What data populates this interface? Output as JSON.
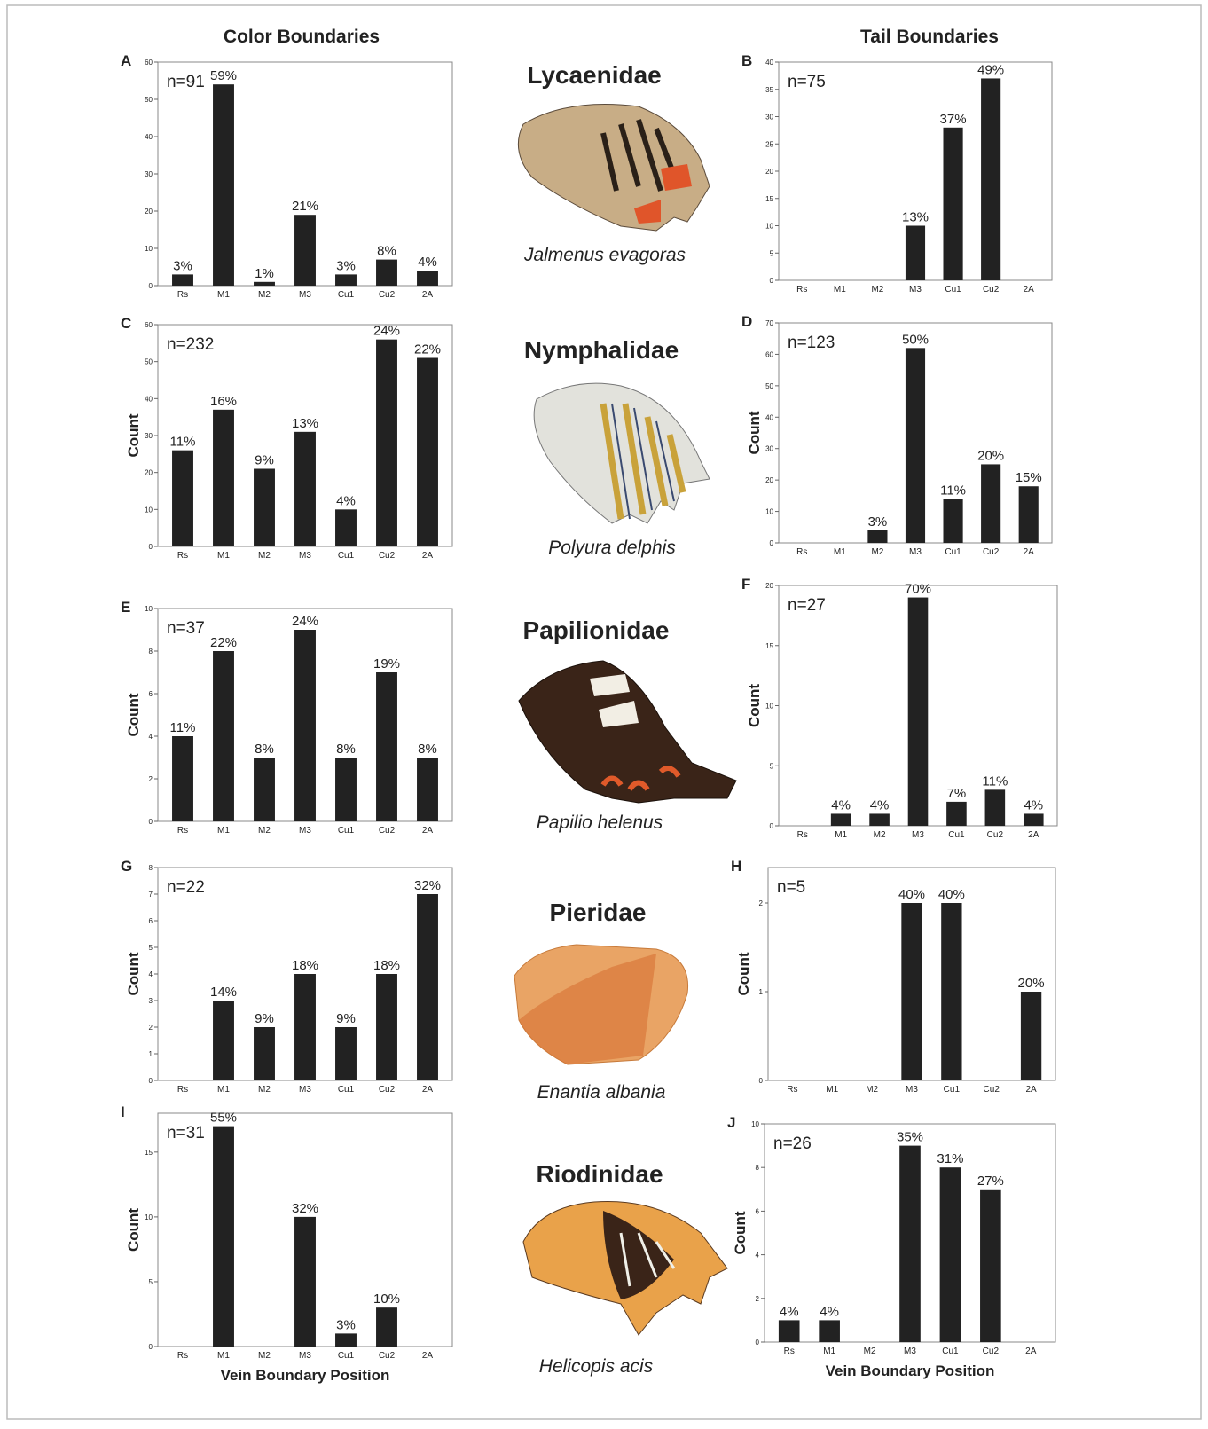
{
  "column_titles": [
    "Color Boundaries",
    "Tail Boundaries"
  ],
  "families": [
    {
      "name": "Lycaenidae",
      "species": "Jalmenus evagoras"
    },
    {
      "name": "Nymphalidae",
      "species": "Polyura delphis"
    },
    {
      "name": "Papilionidae",
      "species": "Papilio helenus"
    },
    {
      "name": "Pieridae",
      "species": "Enantia albania"
    },
    {
      "name": "Riodinidae",
      "species": "Helicopis acis"
    }
  ],
  "chart_data": [
    {
      "type": "bar",
      "panel": "A",
      "annotation": "n=91",
      "categories": [
        "Rs",
        "M1",
        "M2",
        "M3",
        "Cu1",
        "Cu2",
        "2A"
      ],
      "values": [
        3,
        54,
        1,
        19,
        3,
        7,
        4
      ],
      "percent_labels": [
        "3%",
        "59%",
        "1%",
        "21%",
        "3%",
        "8%",
        "4%"
      ],
      "color": "#222222",
      "ylim": [
        0,
        60
      ],
      "yticks": [
        0,
        10,
        20,
        30,
        40,
        50,
        60
      ]
    },
    {
      "type": "bar",
      "panel": "B",
      "annotation": "n=75",
      "categories": [
        "Rs",
        "M1",
        "M2",
        "M3",
        "Cu1",
        "Cu2",
        "2A"
      ],
      "values": [
        0,
        0,
        0,
        10,
        28,
        37,
        0
      ],
      "percent_labels": [
        null,
        null,
        null,
        "13%",
        "37%",
        "49%",
        null
      ],
      "color": "#222222",
      "ylim": [
        0,
        40
      ],
      "yticks": [
        0,
        5,
        10,
        15,
        20,
        25,
        30,
        35,
        40
      ]
    },
    {
      "type": "bar",
      "panel": "C",
      "annotation": "n=232",
      "ylabel": "Count",
      "categories": [
        "Rs",
        "M1",
        "M2",
        "M3",
        "Cu1",
        "Cu2",
        "2A"
      ],
      "values": [
        26,
        37,
        21,
        31,
        10,
        56,
        51
      ],
      "percent_labels": [
        "11%",
        "16%",
        "9%",
        "13%",
        "4%",
        "24%",
        "22%"
      ],
      "color": "#222222",
      "ylim": [
        0,
        60
      ],
      "yticks": [
        0,
        10,
        20,
        30,
        40,
        50,
        60
      ]
    },
    {
      "type": "bar",
      "panel": "D",
      "annotation": "n=123",
      "ylabel": "Count",
      "categories": [
        "Rs",
        "M1",
        "M2",
        "M3",
        "Cu1",
        "Cu2",
        "2A"
      ],
      "values": [
        0,
        0,
        4,
        62,
        14,
        25,
        18
      ],
      "percent_labels": [
        null,
        null,
        "3%",
        "50%",
        "11%",
        "20%",
        "15%"
      ],
      "color": "#222222",
      "ylim": [
        0,
        70
      ],
      "yticks": [
        0,
        10,
        20,
        30,
        40,
        50,
        60,
        70
      ]
    },
    {
      "type": "bar",
      "panel": "E",
      "annotation": "n=37",
      "ylabel": "Count",
      "categories": [
        "Rs",
        "M1",
        "M2",
        "M3",
        "Cu1",
        "Cu2",
        "2A"
      ],
      "values": [
        4,
        8,
        3,
        9,
        3,
        7,
        3
      ],
      "percent_labels": [
        "11%",
        "22%",
        "8%",
        "24%",
        "8%",
        "19%",
        "8%"
      ],
      "color": "#222222",
      "ylim": [
        0,
        10
      ],
      "yticks": [
        0,
        2,
        4,
        6,
        8,
        10
      ]
    },
    {
      "type": "bar",
      "panel": "F",
      "annotation": "n=27",
      "ylabel": "Count",
      "categories": [
        "Rs",
        "M1",
        "M2",
        "M3",
        "Cu1",
        "Cu2",
        "2A"
      ],
      "values": [
        0,
        1,
        1,
        19,
        2,
        3,
        1
      ],
      "percent_labels": [
        null,
        "4%",
        "4%",
        "70%",
        "7%",
        "11%",
        "4%"
      ],
      "color": "#222222",
      "ylim": [
        0,
        20
      ],
      "yticks": [
        0,
        5,
        10,
        15,
        20
      ]
    },
    {
      "type": "bar",
      "panel": "G",
      "annotation": "n=22",
      "ylabel": "Count",
      "categories": [
        "Rs",
        "M1",
        "M2",
        "M3",
        "Cu1",
        "Cu2",
        "2A"
      ],
      "values": [
        0,
        3,
        2,
        4,
        2,
        4,
        7
      ],
      "percent_labels": [
        null,
        "14%",
        "9%",
        "18%",
        "9%",
        "18%",
        "32%"
      ],
      "color": "#222222",
      "ylim": [
        0,
        8
      ],
      "yticks": [
        0,
        1,
        2,
        3,
        4,
        5,
        6,
        7,
        8
      ]
    },
    {
      "type": "bar",
      "panel": "H",
      "annotation": "n=5",
      "ylabel": "Count",
      "categories": [
        "Rs",
        "M1",
        "M2",
        "M3",
        "Cu1",
        "Cu2",
        "2A"
      ],
      "values": [
        0,
        0,
        0,
        2,
        2,
        0,
        1
      ],
      "percent_labels": [
        null,
        null,
        null,
        "40%",
        "40%",
        null,
        "20%"
      ],
      "color": "#222222",
      "ylim": [
        0,
        2.4
      ],
      "yticks": [
        0,
        1,
        2
      ]
    },
    {
      "type": "bar",
      "panel": "I",
      "annotation": "n=31",
      "ylabel": "Count",
      "xlabel": "Vein Boundary Position",
      "categories": [
        "Rs",
        "M1",
        "M2",
        "M3",
        "Cu1",
        "Cu2",
        "2A"
      ],
      "values": [
        0,
        17,
        0,
        10,
        1,
        3,
        0
      ],
      "percent_labels": [
        null,
        "55%",
        null,
        "32%",
        "3%",
        "10%",
        null
      ],
      "color": "#222222",
      "ylim": [
        0,
        18
      ],
      "yticks": [
        0,
        5,
        10,
        15
      ]
    },
    {
      "type": "bar",
      "panel": "J",
      "annotation": "n=26",
      "ylabel": "Count",
      "xlabel": "Vein Boundary Position",
      "categories": [
        "Rs",
        "M1",
        "M2",
        "M3",
        "Cu1",
        "Cu2",
        "2A"
      ],
      "values": [
        1,
        1,
        0,
        9,
        8,
        7,
        0
      ],
      "percent_labels": [
        "4%",
        "4%",
        null,
        "35%",
        "31%",
        "27%",
        null
      ],
      "color": "#222222",
      "ylim": [
        0,
        10
      ],
      "yticks": [
        0,
        2,
        4,
        6,
        8,
        10
      ]
    }
  ]
}
